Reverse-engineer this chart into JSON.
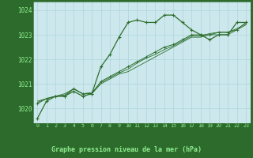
{
  "x": [
    0,
    1,
    2,
    3,
    4,
    5,
    6,
    7,
    8,
    9,
    10,
    11,
    12,
    13,
    14,
    15,
    16,
    17,
    18,
    19,
    20,
    21,
    22,
    23
  ],
  "line1": [
    1019.6,
    1020.3,
    1020.5,
    1020.5,
    1020.7,
    1020.5,
    1020.6,
    1021.7,
    1022.2,
    1022.9,
    1023.5,
    1023.6,
    1023.5,
    1023.5,
    1023.8,
    1023.8,
    1023.5,
    1023.2,
    1023.0,
    1022.8,
    1023.0,
    1023.0,
    1023.5,
    1023.5
  ],
  "line2": [
    1020.2,
    1020.4,
    1020.5,
    1020.5,
    1020.8,
    1020.6,
    1020.6,
    1021.1,
    1021.3,
    1021.5,
    1021.7,
    1021.9,
    1022.1,
    1022.3,
    1022.5,
    1022.6,
    1022.8,
    1023.0,
    1023.0,
    1023.0,
    1023.1,
    1023.1,
    1023.2,
    1023.5
  ],
  "line3": [
    1020.25,
    1020.4,
    1020.5,
    1020.55,
    1020.8,
    1020.6,
    1020.65,
    1021.05,
    1021.25,
    1021.45,
    1021.6,
    1021.85,
    1022.05,
    1022.2,
    1022.4,
    1022.55,
    1022.75,
    1022.95,
    1022.95,
    1023.05,
    1023.1,
    1023.1,
    1023.25,
    1023.45
  ],
  "line4": [
    1020.3,
    1020.4,
    1020.5,
    1020.6,
    1020.8,
    1020.6,
    1020.6,
    1021.0,
    1021.2,
    1021.4,
    1021.5,
    1021.7,
    1021.9,
    1022.1,
    1022.3,
    1022.5,
    1022.7,
    1022.9,
    1022.9,
    1023.0,
    1023.0,
    1023.0,
    1023.2,
    1023.4
  ],
  "bg_color": "#cde8ec",
  "grid_color": "#b0d8de",
  "line_color": "#2d6e2d",
  "bottom_bg": "#2d6b2d",
  "bottom_text_color": "#90ee90",
  "bottom_label": "Graphe pression niveau de la mer (hPa)",
  "yticks": [
    1020,
    1021,
    1022,
    1023,
    1024
  ],
  "xticks": [
    0,
    1,
    2,
    3,
    4,
    5,
    6,
    7,
    8,
    9,
    10,
    11,
    12,
    13,
    14,
    15,
    16,
    17,
    18,
    19,
    20,
    21,
    22,
    23
  ],
  "ylim": [
    1019.4,
    1024.35
  ],
  "xlim": [
    -0.5,
    23.5
  ]
}
